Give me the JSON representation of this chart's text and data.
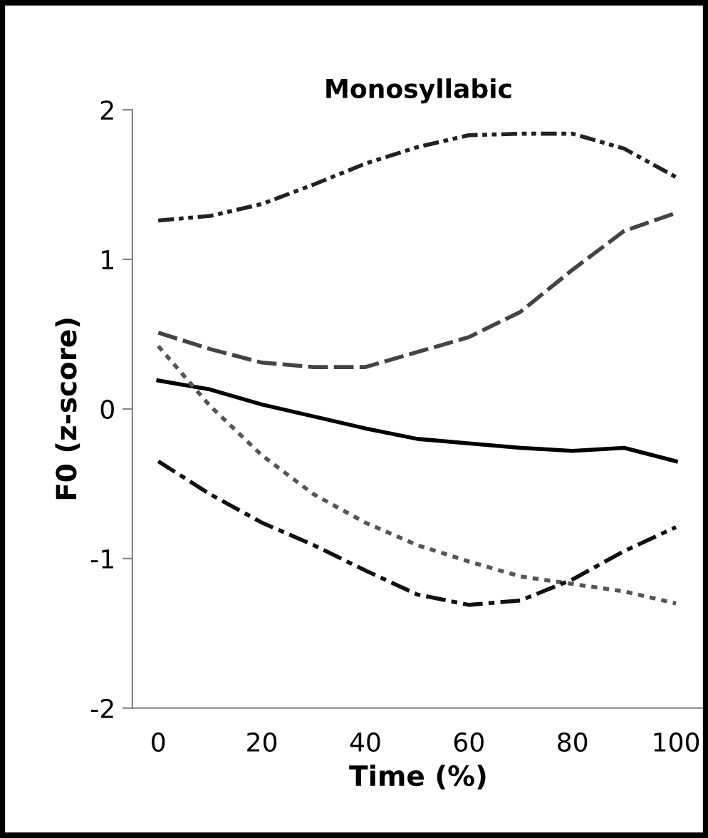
{
  "chart_data": {
    "type": "line",
    "title": "Monosyllabic",
    "xlabel": "Time (%)",
    "ylabel": "F0 (z-score)",
    "x": [
      0,
      10,
      20,
      30,
      40,
      50,
      60,
      70,
      80,
      90,
      100
    ],
    "series": [
      {
        "color": "#000000",
        "line_style": "solid",
        "values": [
          0.19,
          0.13,
          0.03,
          -0.05,
          -0.13,
          -0.2,
          -0.23,
          -0.26,
          -0.28,
          -0.26,
          -0.35
        ]
      },
      {
        "color": "#222222",
        "line_style": "dashdotdot",
        "values": [
          1.26,
          1.29,
          1.37,
          1.5,
          1.64,
          1.75,
          1.83,
          1.84,
          1.84,
          1.74,
          1.55
        ]
      },
      {
        "color": "#444444",
        "line_style": "dashed",
        "values": [
          0.51,
          0.4,
          0.31,
          0.28,
          0.28,
          0.38,
          0.48,
          0.65,
          0.93,
          1.19,
          1.31
        ]
      },
      {
        "color": "#555555",
        "line_style": "dotted",
        "values": [
          0.42,
          0.02,
          -0.31,
          -0.57,
          -0.76,
          -0.91,
          -1.02,
          -1.12,
          -1.17,
          -1.22,
          -1.3
        ]
      },
      {
        "color": "#111111",
        "line_style": "dashdot",
        "values": [
          -0.35,
          -0.57,
          -0.76,
          -0.91,
          -1.08,
          -1.24,
          -1.31,
          -1.28,
          -1.14,
          -0.95,
          -0.79
        ]
      }
    ],
    "xlim": [
      -5,
      105.5
    ],
    "ylim": [
      -2,
      2
    ],
    "xticks": [
      0,
      20,
      40,
      60,
      80,
      100
    ],
    "yticks": [
      -2,
      -1,
      0,
      1,
      2
    ],
    "grid": false,
    "legend": false,
    "marker": "none"
  }
}
